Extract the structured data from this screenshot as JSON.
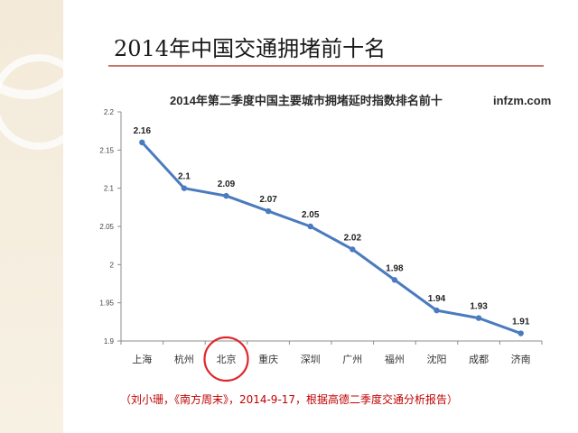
{
  "slide": {
    "title": "2014年中国交通拥堵前十名",
    "caption": "（刘小珊，《南方周末》，2014-9-17，根据高德二季度交通分析报告）",
    "accent_color": "#c8746d",
    "caption_color": "#c00000"
  },
  "chart_data": {
    "type": "line",
    "title": "2014年第二季度中国主要城市拥堵延时指数排名前十",
    "watermark": "infzm.com",
    "categories": [
      "上海",
      "杭州",
      "北京",
      "重庆",
      "深圳",
      "广州",
      "福州",
      "沈阳",
      "成都",
      "济南"
    ],
    "values": [
      2.16,
      2.1,
      2.09,
      2.07,
      2.05,
      2.02,
      1.98,
      1.94,
      1.93,
      1.91
    ],
    "data_labels": [
      "2.16",
      "2.1",
      "2.09",
      "2.07",
      "2.05",
      "2.02",
      "1.98",
      "1.94",
      "1.93",
      "1.91"
    ],
    "ylim": [
      1.9,
      2.2
    ],
    "yticks": [
      "1.9",
      "1.95",
      "2",
      "2.05",
      "2.1",
      "2.15",
      "2.2"
    ],
    "ytick_values": [
      1.9,
      1.95,
      2.0,
      2.05,
      2.1,
      2.15,
      2.2
    ],
    "xlabel": "",
    "ylabel": "",
    "grid": false,
    "line_color": "#4a7bbf",
    "highlight_category": "北京",
    "highlight_color": "#e0262b"
  }
}
